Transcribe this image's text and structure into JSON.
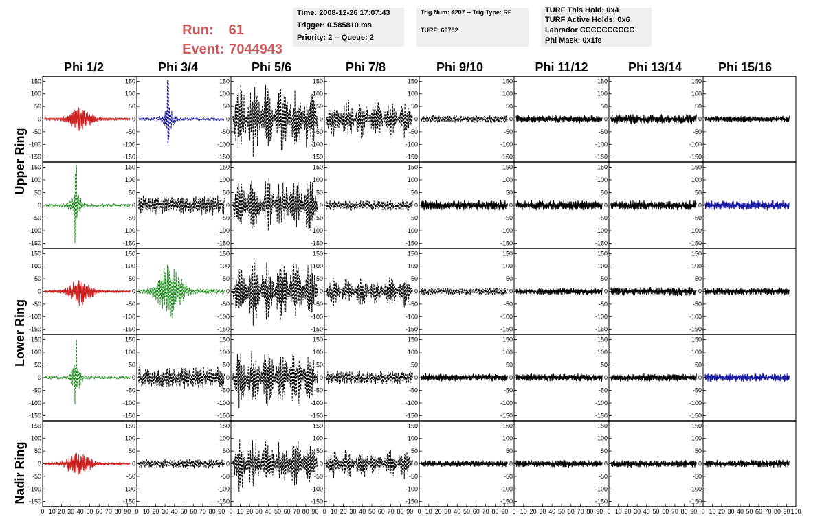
{
  "header": {
    "run_label": "Run:",
    "run_value": "61",
    "event_label": "Event:",
    "event_value": "7044943",
    "time_line": "Time: 2008-12-26 17:07:43",
    "trigger_line": "Trigger: 0.585810 ms",
    "priority_line": "Priority: 2 -- Queue: 2",
    "trig_line": "Trig Num: 4207 -- Trig Type: RF",
    "turf_line": "TURF: 69752",
    "hold_line": "TURF This Hold: 0x4",
    "active_holds_line": "TURF Active Holds: 0x6",
    "labrador_line": "Labrador CCCCCCCCCC",
    "phi_mask_line": "Phi Mask: 0x1fe"
  },
  "columns": [
    "Phi 1/2",
    "Phi 3/4",
    "Phi 5/6",
    "Phi 7/8",
    "Phi 9/10",
    "Phi 11/12",
    "Phi 13/14",
    "Phi 15/16"
  ],
  "ring_labels": {
    "upper": "Upper Ring",
    "lower": "Lower Ring",
    "nadir": "Nadir Ring"
  },
  "colors": {
    "red": "#cc2222",
    "blue": "#1a1aa0",
    "green": "#1c8c1c",
    "black": "#000000",
    "header_red": "#cc5a5a",
    "info_bg": "#efefef"
  },
  "chart_data": {
    "type": "line",
    "xlim": [
      0,
      100
    ],
    "ylim": [
      -170,
      170
    ],
    "x_ticks": [
      "0",
      "10",
      "20",
      "30",
      "40",
      "50",
      "60",
      "70",
      "80",
      "90",
      "100"
    ],
    "y_ticks": [
      "150",
      "100",
      "50",
      "0",
      "-50",
      "-100",
      "-150"
    ],
    "rows": [
      {
        "cells": [
          {
            "color": "red",
            "style": "solid",
            "amp": 14,
            "env": "burst",
            "center": 40
          },
          {
            "color": "blue",
            "style": "dashed",
            "amp": 18,
            "env": "spike",
            "center": 33
          },
          {
            "color": "black",
            "style": "dashed",
            "amp": 120,
            "env": "beat"
          },
          {
            "color": "black",
            "style": "dashed",
            "amp": 65,
            "env": "beat"
          },
          {
            "color": "black",
            "style": "dashed",
            "amp": 14,
            "env": "flat"
          },
          {
            "color": "black",
            "style": "solid",
            "amp": 14,
            "env": "flat"
          },
          {
            "color": "black",
            "style": "solid",
            "amp": 18,
            "env": "flat"
          },
          {
            "color": "black",
            "style": "solid",
            "amp": 12,
            "env": "flat"
          }
        ]
      },
      {
        "cells": [
          {
            "color": "green",
            "style": "dashed",
            "amp": 16,
            "env": "spike",
            "center": 35
          },
          {
            "color": "black",
            "style": "dashed",
            "amp": 35,
            "env": "flat"
          },
          {
            "color": "black",
            "style": "dashed",
            "amp": 90,
            "env": "beat"
          },
          {
            "color": "black",
            "style": "dashed",
            "amp": 20,
            "env": "flat"
          },
          {
            "color": "black",
            "style": "solid",
            "amp": 18,
            "env": "flat"
          },
          {
            "color": "black",
            "style": "solid",
            "amp": 18,
            "env": "flat"
          },
          {
            "color": "black",
            "style": "solid",
            "amp": 18,
            "env": "flat"
          },
          {
            "color": "blue",
            "style": "solid",
            "amp": 18,
            "env": "flat"
          }
        ]
      },
      {
        "cells": [
          {
            "color": "red",
            "style": "solid",
            "amp": 14,
            "env": "burst",
            "center": 40
          },
          {
            "color": "green",
            "style": "dashed",
            "amp": 30,
            "env": "burst",
            "center": 35
          },
          {
            "color": "black",
            "style": "dashed",
            "amp": 110,
            "env": "beat"
          },
          {
            "color": "black",
            "style": "dashed",
            "amp": 50,
            "env": "beat"
          },
          {
            "color": "black",
            "style": "dashed",
            "amp": 14,
            "env": "flat"
          },
          {
            "color": "black",
            "style": "solid",
            "amp": 14,
            "env": "flat"
          },
          {
            "color": "black",
            "style": "solid",
            "amp": 16,
            "env": "flat"
          },
          {
            "color": "black",
            "style": "solid",
            "amp": 14,
            "env": "flat"
          }
        ]
      },
      {
        "cells": [
          {
            "color": "green",
            "style": "dashed",
            "amp": 16,
            "env": "spike",
            "center": 35
          },
          {
            "color": "black",
            "style": "dashed",
            "amp": 40,
            "env": "flat"
          },
          {
            "color": "black",
            "style": "dashed",
            "amp": 100,
            "env": "beat"
          },
          {
            "color": "black",
            "style": "dashed",
            "amp": 25,
            "env": "flat"
          },
          {
            "color": "black",
            "style": "solid",
            "amp": 14,
            "env": "flat"
          },
          {
            "color": "black",
            "style": "solid",
            "amp": 14,
            "env": "flat"
          },
          {
            "color": "black",
            "style": "solid",
            "amp": 14,
            "env": "flat"
          },
          {
            "color": "blue",
            "style": "solid",
            "amp": 16,
            "env": "flat"
          }
        ]
      },
      {
        "cells": [
          {
            "color": "red",
            "style": "solid",
            "amp": 14,
            "env": "burst",
            "center": 38
          },
          {
            "color": "black",
            "style": "dashed",
            "amp": 18,
            "env": "flat"
          },
          {
            "color": "black",
            "style": "dashed",
            "amp": 90,
            "env": "beat"
          },
          {
            "color": "black",
            "style": "dashed",
            "amp": 50,
            "env": "beat"
          },
          {
            "color": "black",
            "style": "solid",
            "amp": 12,
            "env": "flat"
          },
          {
            "color": "black",
            "style": "solid",
            "amp": 14,
            "env": "flat"
          },
          {
            "color": "black",
            "style": "solid",
            "amp": 14,
            "env": "flat"
          },
          {
            "color": "black",
            "style": "solid",
            "amp": 14,
            "env": "flat"
          }
        ]
      }
    ]
  }
}
